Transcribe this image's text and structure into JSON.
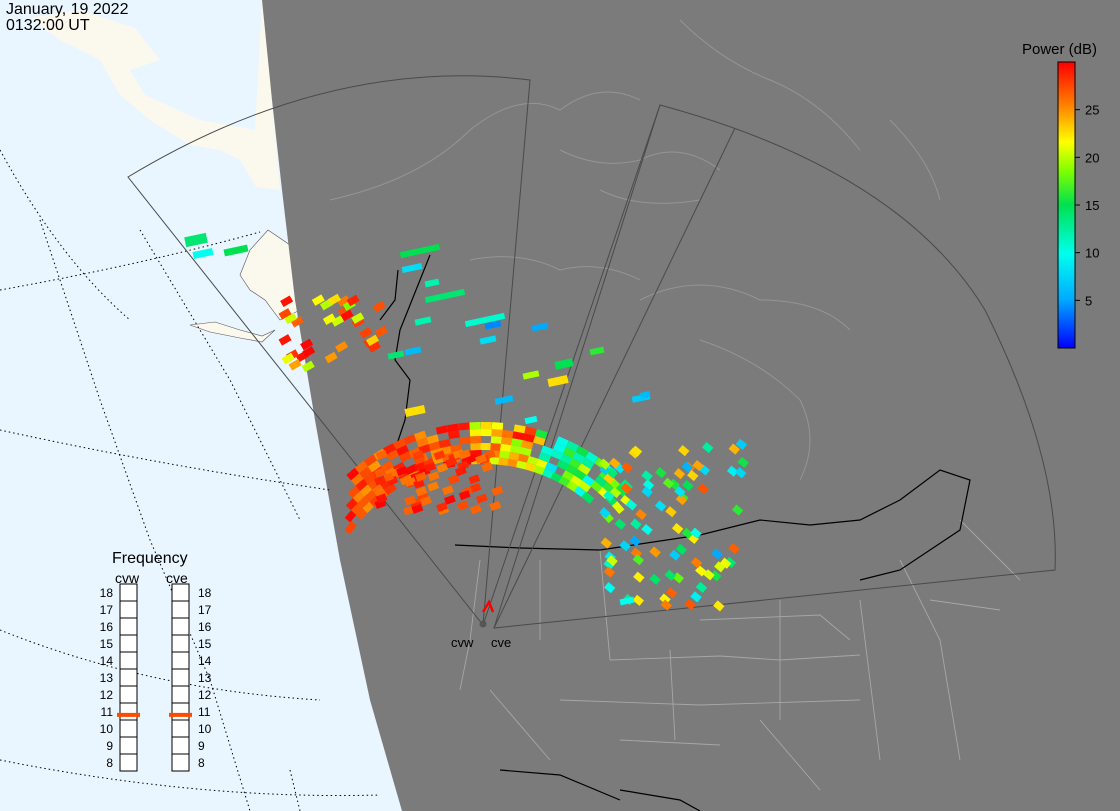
{
  "header": {
    "date": "January, 19 2022",
    "time": "0132:00 UT"
  },
  "colorbar": {
    "title": "Power (dB)",
    "ticks": [
      "25",
      "20",
      "15",
      "10",
      "5"
    ],
    "tick_values": [
      25,
      20,
      15,
      10,
      5
    ],
    "range": [
      0,
      30
    ]
  },
  "frequency_panel": {
    "title": "Frequency",
    "radars": [
      {
        "name": "cvw",
        "frequency_mhz": 10.8
      },
      {
        "name": "cve",
        "frequency_mhz": 10.8
      }
    ],
    "scale": [
      "18",
      "17",
      "16",
      "15",
      "14",
      "13",
      "12",
      "11",
      "10",
      "9",
      "8"
    ]
  },
  "map": {
    "radar_sites": [
      {
        "name": "cvw"
      },
      {
        "name": "cve"
      }
    ],
    "colors": {
      "ocean": "#e9f5ff",
      "land_sunlit": "#fbf9ee",
      "night_shade": "#7b7b7b",
      "fov_outline": "#4a4a4a",
      "borders": "#000000",
      "states": "#a7a7a7",
      "frequency_marker": "#ff4a00",
      "radar_marker": "#ff0000"
    }
  },
  "chart_data": {
    "type": "heatmap",
    "description_units": "backscatter power (dB)"
  }
}
